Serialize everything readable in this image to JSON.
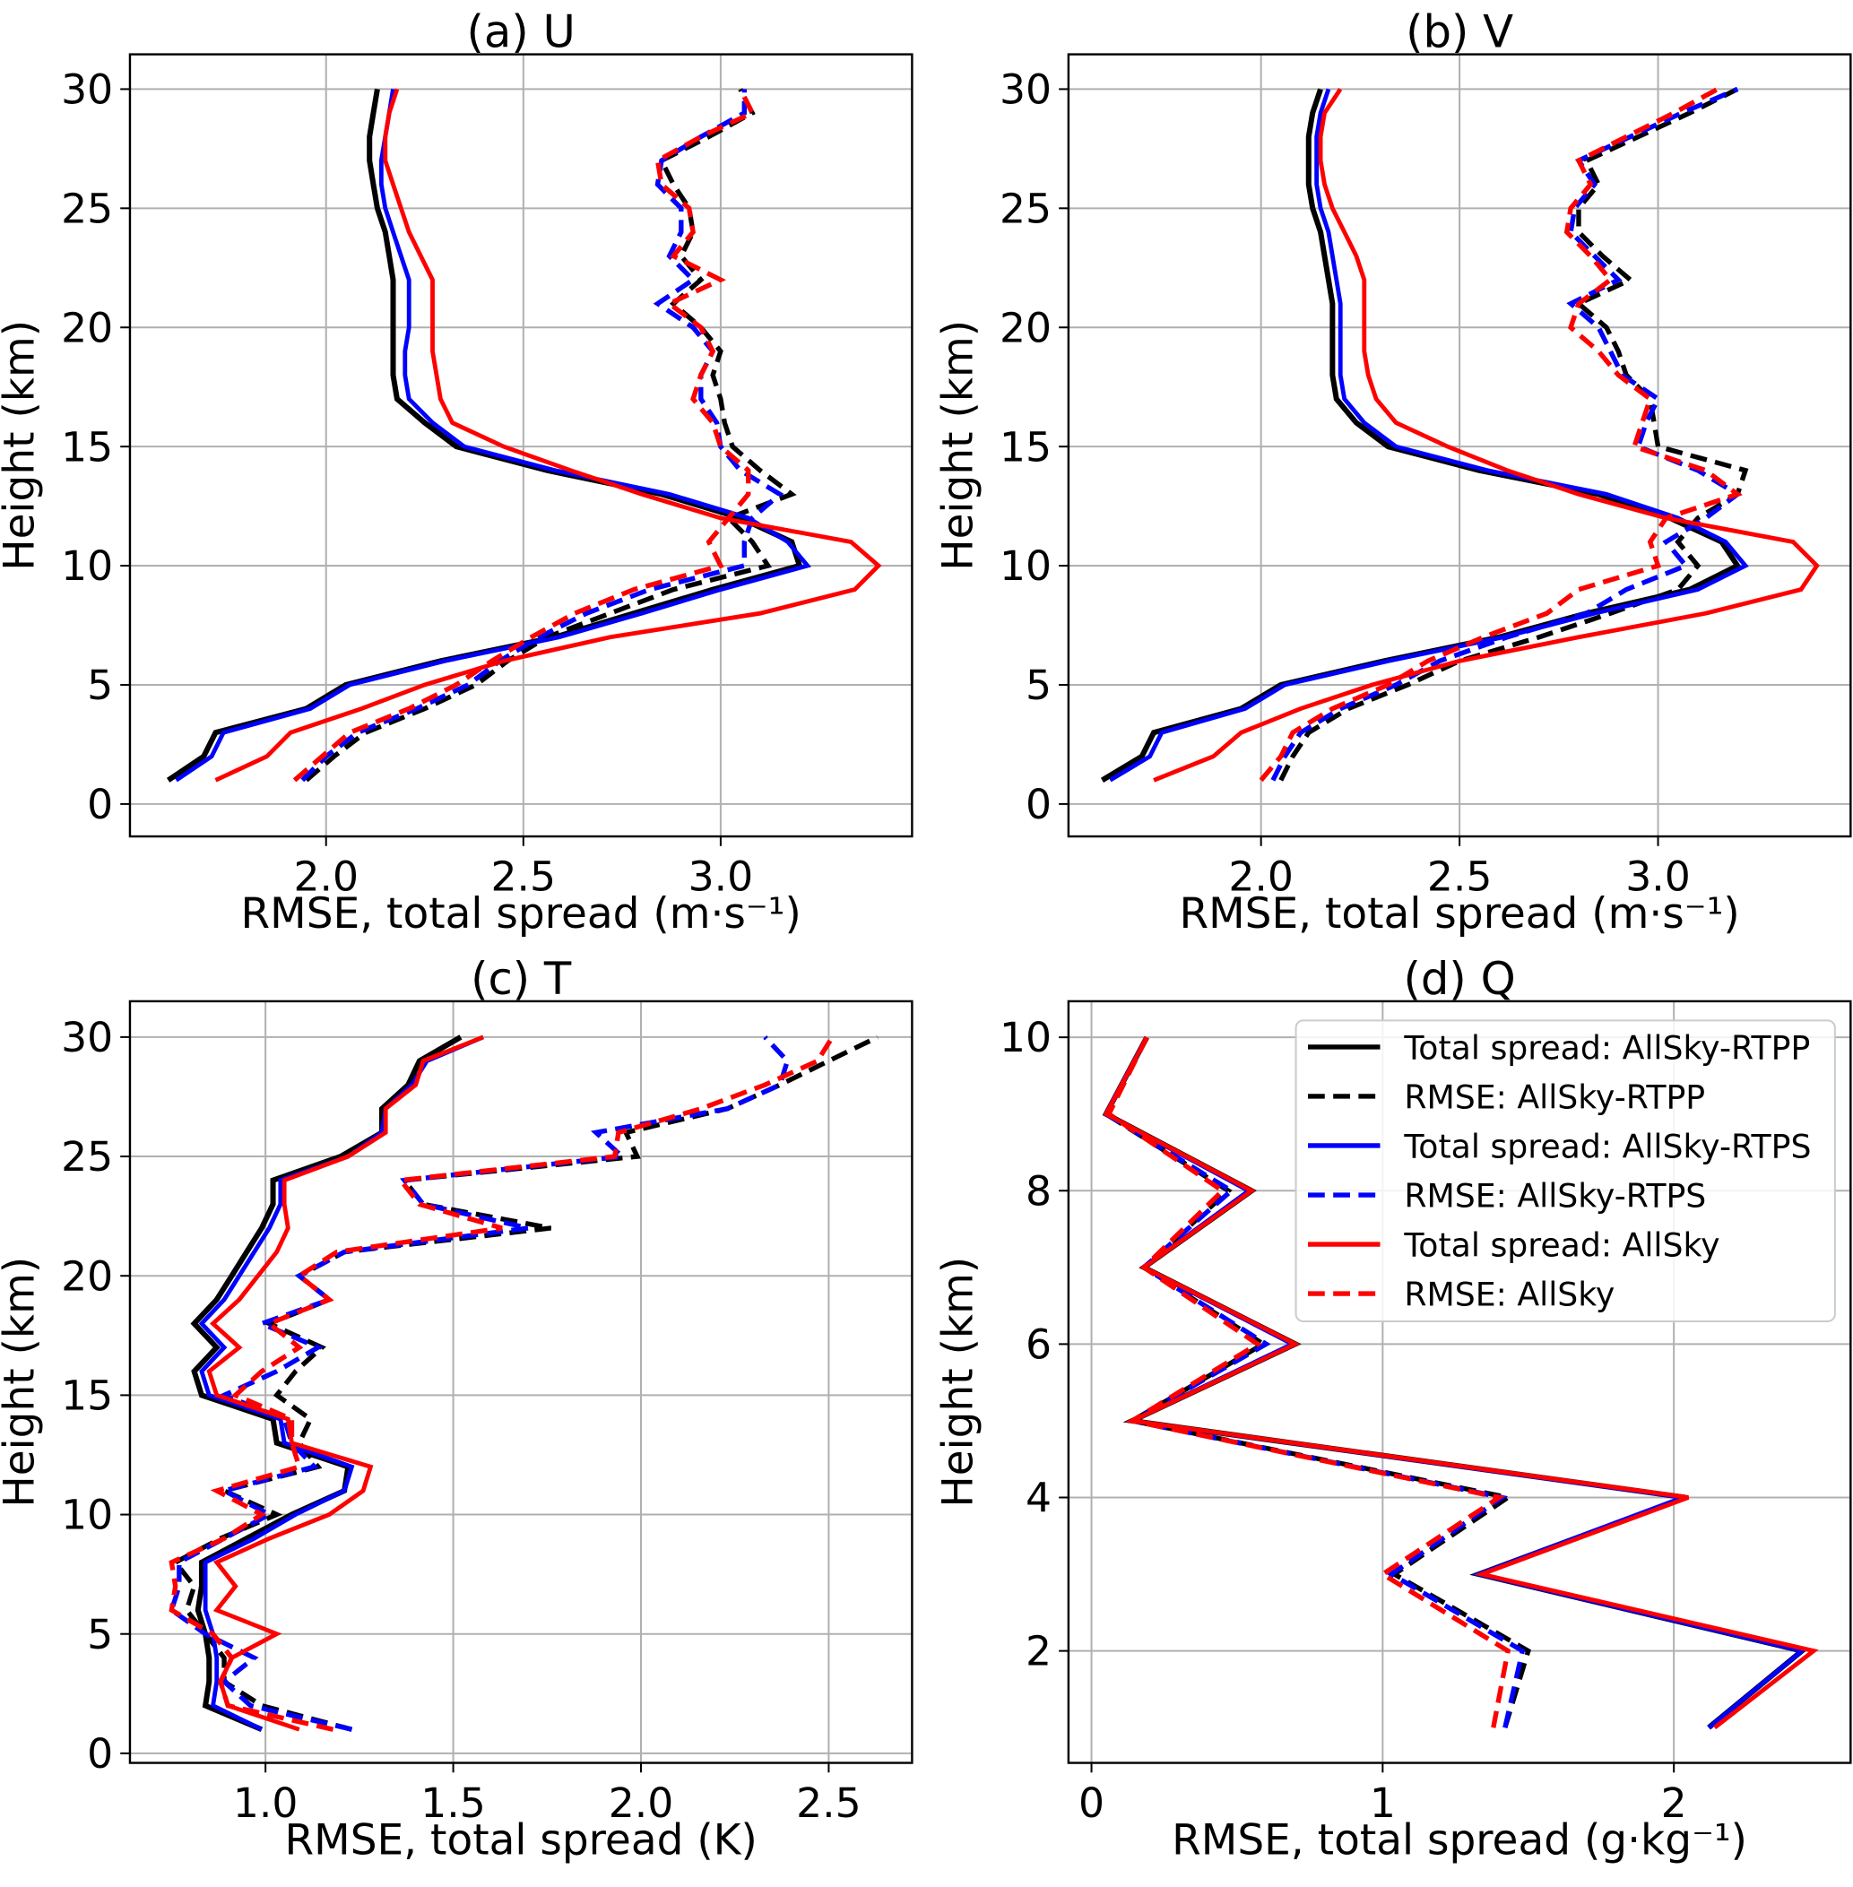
{
  "figure": {
    "legend": [
      {
        "label": "Total spread: AllSky-RTPP",
        "color": "#000000",
        "style": "solid"
      },
      {
        "label": "RMSE: AllSky-RTPP",
        "color": "#000000",
        "style": "dashed"
      },
      {
        "label": "Total spread: AllSky-RTPS",
        "color": "#0000ff",
        "style": "solid"
      },
      {
        "label": "RMSE: AllSky-RTPS",
        "color": "#0000ff",
        "style": "dashed"
      },
      {
        "label": "Total spread: AllSky",
        "color": "#ff0000",
        "style": "solid"
      },
      {
        "label": "RMSE: AllSky",
        "color": "#ff0000",
        "style": "dashed"
      }
    ]
  },
  "chart_data": [
    {
      "type": "line",
      "title": "(a) U",
      "xlabel": "RMSE, total spread (m·s⁻¹)",
      "ylabel": "Height (km)",
      "xlim": [
        1.503,
        3.485
      ],
      "ylim": [
        -1.36,
        31.46
      ],
      "grid": true,
      "xticks": [
        {
          "v": 2.0,
          "t": "2.0"
        },
        {
          "v": 2.5,
          "t": "2.5"
        },
        {
          "v": 3.0,
          "t": "3.0"
        }
      ],
      "yticks": [
        {
          "v": 0,
          "t": "0"
        },
        {
          "v": 5,
          "t": "5"
        },
        {
          "v": 10,
          "t": "10"
        },
        {
          "v": 15,
          "t": "15"
        },
        {
          "v": 20,
          "t": "20"
        },
        {
          "v": 25,
          "t": "25"
        },
        {
          "v": 30,
          "t": "30"
        }
      ],
      "y": [
        1,
        2,
        3,
        4,
        5,
        6,
        7,
        8,
        9,
        10,
        11,
        12,
        13,
        14,
        15,
        16,
        17,
        18,
        19,
        20,
        21,
        22,
        23,
        24,
        25,
        26,
        27,
        28,
        29,
        30
      ],
      "series": [
        {
          "name": "Total spread: AllSky-RTPP",
          "values": [
            1.6,
            1.69,
            1.72,
            1.95,
            2.05,
            2.29,
            2.58,
            2.78,
            2.98,
            3.2,
            3.18,
            3.05,
            2.85,
            2.56,
            2.33,
            2.25,
            2.18,
            2.17,
            2.17,
            2.17,
            2.17,
            2.17,
            2.16,
            2.15,
            2.13,
            2.12,
            2.11,
            2.11,
            2.12,
            2.13
          ]
        },
        {
          "name": "RMSE: AllSky-RTPP",
          "values": [
            1.95,
            2.02,
            2.1,
            2.25,
            2.38,
            2.46,
            2.56,
            2.72,
            2.88,
            3.12,
            3.08,
            3.02,
            3.18,
            3.1,
            3.03,
            3.01,
            3.0,
            2.98,
            3.0,
            2.95,
            2.88,
            2.95,
            2.9,
            2.93,
            2.92,
            2.88,
            2.85,
            2.97,
            3.08,
            3.05
          ]
        },
        {
          "name": "Total spread: AllSky-RTPS",
          "values": [
            1.62,
            1.71,
            1.74,
            1.96,
            2.06,
            2.3,
            2.59,
            2.8,
            3.0,
            3.22,
            3.17,
            3.07,
            2.87,
            2.58,
            2.35,
            2.27,
            2.21,
            2.2,
            2.2,
            2.21,
            2.21,
            2.21,
            2.19,
            2.17,
            2.15,
            2.14,
            2.14,
            2.15,
            2.16,
            2.17
          ]
        },
        {
          "name": "RMSE: AllSky-RTPS",
          "values": [
            1.94,
            2.0,
            2.08,
            2.23,
            2.36,
            2.44,
            2.54,
            2.66,
            2.82,
            3.06,
            3.06,
            3.08,
            3.15,
            3.05,
            3.0,
            2.99,
            2.95,
            2.95,
            2.98,
            2.93,
            2.84,
            2.93,
            2.87,
            2.9,
            2.9,
            2.84,
            2.85,
            2.95,
            3.06,
            3.06
          ]
        },
        {
          "name": "Total spread: AllSky",
          "values": [
            1.72,
            1.85,
            1.91,
            2.09,
            2.25,
            2.45,
            2.72,
            3.1,
            3.34,
            3.4,
            3.33,
            3.0,
            2.8,
            2.62,
            2.45,
            2.32,
            2.29,
            2.28,
            2.27,
            2.27,
            2.27,
            2.27,
            2.24,
            2.21,
            2.19,
            2.17,
            2.15,
            2.15,
            2.16,
            2.18
          ]
        },
        {
          "name": "RMSE: AllSky",
          "values": [
            1.92,
            1.99,
            2.06,
            2.21,
            2.33,
            2.42,
            2.52,
            2.63,
            2.78,
            3.0,
            2.97,
            3.02,
            3.07,
            3.07,
            3.0,
            2.98,
            2.93,
            2.95,
            2.98,
            2.95,
            2.87,
            3.0,
            2.88,
            2.93,
            2.92,
            2.85,
            2.84,
            2.95,
            3.08,
            3.05
          ]
        }
      ]
    },
    {
      "type": "line",
      "title": "(b) V",
      "xlabel": "RMSE, total spread (m·s⁻¹)",
      "ylabel": "Height (km)",
      "xlim": [
        1.515,
        3.485
      ],
      "ylim": [
        -1.36,
        31.46
      ],
      "grid": true,
      "xticks": [
        {
          "v": 2.0,
          "t": "2.0"
        },
        {
          "v": 2.5,
          "t": "2.5"
        },
        {
          "v": 3.0,
          "t": "3.0"
        }
      ],
      "yticks": [
        {
          "v": 0,
          "t": "0"
        },
        {
          "v": 5,
          "t": "5"
        },
        {
          "v": 10,
          "t": "10"
        },
        {
          "v": 15,
          "t": "15"
        },
        {
          "v": 20,
          "t": "20"
        },
        {
          "v": 25,
          "t": "25"
        },
        {
          "v": 30,
          "t": "30"
        }
      ],
      "y": [
        1,
        2,
        3,
        4,
        5,
        6,
        7,
        8,
        9,
        10,
        11,
        12,
        13,
        14,
        15,
        16,
        17,
        18,
        19,
        20,
        21,
        22,
        23,
        24,
        25,
        26,
        27,
        28,
        29,
        30
      ],
      "series": [
        {
          "name": "Total spread: AllSky-RTPP",
          "values": [
            1.6,
            1.7,
            1.73,
            1.95,
            2.05,
            2.31,
            2.6,
            2.82,
            3.08,
            3.2,
            3.16,
            3.03,
            2.85,
            2.55,
            2.32,
            2.24,
            2.19,
            2.18,
            2.18,
            2.18,
            2.18,
            2.17,
            2.16,
            2.15,
            2.13,
            2.12,
            2.12,
            2.12,
            2.13,
            2.15
          ]
        },
        {
          "name": "RMSE: AllSky-RTPP",
          "values": [
            2.05,
            2.08,
            2.12,
            2.22,
            2.37,
            2.5,
            2.7,
            2.88,
            3.05,
            3.1,
            3.05,
            3.1,
            3.2,
            3.22,
            3.0,
            2.99,
            2.98,
            2.92,
            2.9,
            2.87,
            2.8,
            2.93,
            2.86,
            2.8,
            2.8,
            2.85,
            2.82,
            2.95,
            3.08,
            3.2
          ]
        },
        {
          "name": "Total spread: AllSky-RTPS",
          "values": [
            1.62,
            1.72,
            1.75,
            1.96,
            2.06,
            2.32,
            2.61,
            2.84,
            3.1,
            3.22,
            3.17,
            3.05,
            2.87,
            2.57,
            2.34,
            2.26,
            2.21,
            2.2,
            2.2,
            2.2,
            2.2,
            2.19,
            2.18,
            2.17,
            2.15,
            2.14,
            2.14,
            2.14,
            2.15,
            2.17
          ]
        },
        {
          "name": "RMSE: AllSky-RTPS",
          "values": [
            2.03,
            2.06,
            2.1,
            2.2,
            2.34,
            2.45,
            2.62,
            2.82,
            2.92,
            3.07,
            3.02,
            3.12,
            3.2,
            3.1,
            2.95,
            2.97,
            3.0,
            2.91,
            2.88,
            2.85,
            2.78,
            2.9,
            2.84,
            2.78,
            2.79,
            2.84,
            2.8,
            2.93,
            3.06,
            3.2
          ]
        },
        {
          "name": "Total spread: AllSky",
          "values": [
            1.73,
            1.88,
            1.95,
            2.1,
            2.28,
            2.5,
            2.8,
            3.12,
            3.36,
            3.4,
            3.34,
            3.02,
            2.8,
            2.62,
            2.47,
            2.34,
            2.29,
            2.27,
            2.26,
            2.26,
            2.26,
            2.26,
            2.24,
            2.21,
            2.18,
            2.16,
            2.15,
            2.15,
            2.16,
            2.2
          ]
        },
        {
          "name": "RMSE: AllSky",
          "values": [
            2.0,
            2.05,
            2.08,
            2.18,
            2.32,
            2.42,
            2.56,
            2.72,
            2.8,
            3.0,
            2.98,
            3.02,
            3.2,
            3.12,
            2.94,
            2.96,
            2.98,
            2.9,
            2.85,
            2.78,
            2.8,
            2.88,
            2.83,
            2.77,
            2.78,
            2.83,
            2.8,
            2.92,
            3.04,
            3.15
          ]
        }
      ]
    },
    {
      "type": "line",
      "title": "(c) T",
      "xlabel": "RMSE, total spread (K)",
      "ylabel": "Height (km)",
      "xlim": [
        0.639,
        2.722
      ],
      "ylim": [
        -0.4,
        31.5
      ],
      "grid": true,
      "xticks": [
        {
          "v": 1.0,
          "t": "1.0"
        },
        {
          "v": 1.5,
          "t": "1.5"
        },
        {
          "v": 2.0,
          "t": "2.0"
        },
        {
          "v": 2.5,
          "t": "2.5"
        }
      ],
      "yticks": [
        {
          "v": 0,
          "t": "0"
        },
        {
          "v": 5,
          "t": "5"
        },
        {
          "v": 10,
          "t": "10"
        },
        {
          "v": 15,
          "t": "15"
        },
        {
          "v": 20,
          "t": "20"
        },
        {
          "v": 25,
          "t": "25"
        },
        {
          "v": 30,
          "t": "30"
        }
      ],
      "y": [
        1,
        2,
        3,
        4,
        5,
        6,
        7,
        8,
        9,
        10,
        11,
        12,
        13,
        14,
        15,
        16,
        17,
        18,
        19,
        20,
        21,
        22,
        23,
        24,
        25,
        26,
        27,
        28,
        29,
        30
      ],
      "series": [
        {
          "name": "Total spread: AllSky-RTPP",
          "values": [
            0.99,
            0.84,
            0.85,
            0.85,
            0.84,
            0.82,
            0.83,
            0.83,
            0.95,
            1.07,
            1.21,
            1.22,
            1.03,
            1.02,
            0.83,
            0.81,
            0.87,
            0.81,
            0.87,
            0.91,
            0.95,
            0.99,
            1.02,
            1.02,
            1.2,
            1.31,
            1.31,
            1.38,
            1.41,
            1.52
          ]
        },
        {
          "name": "RMSE: AllSky-RTPP",
          "values": [
            1.23,
            0.99,
            0.89,
            0.89,
            0.84,
            0.79,
            0.81,
            0.76,
            0.88,
            1.03,
            0.89,
            1.14,
            1.09,
            1.12,
            1.03,
            1.08,
            1.15,
            1.01,
            1.17,
            1.09,
            1.21,
            1.76,
            1.42,
            1.37,
            1.99,
            1.96,
            2.23,
            2.37,
            2.5,
            2.63
          ]
        },
        {
          "name": "Total spread: AllSky-RTPS",
          "values": [
            0.99,
            0.86,
            0.87,
            0.87,
            0.86,
            0.84,
            0.84,
            0.84,
            0.97,
            1.08,
            1.21,
            1.23,
            1.05,
            1.04,
            0.85,
            0.83,
            0.89,
            0.83,
            0.89,
            0.93,
            0.97,
            1.01,
            1.04,
            1.04,
            1.22,
            1.31,
            1.32,
            1.39,
            1.43,
            1.58
          ]
        },
        {
          "name": "RMSE: AllSky-RTPS",
          "values": [
            1.23,
            0.96,
            0.89,
            0.97,
            0.84,
            0.75,
            0.77,
            0.77,
            0.89,
            1.01,
            0.89,
            1.13,
            1.07,
            1.05,
            0.89,
            1.03,
            1.14,
            0.99,
            1.17,
            1.09,
            1.21,
            1.7,
            1.42,
            1.37,
            1.95,
            1.88,
            2.23,
            2.37,
            2.39,
            2.33
          ]
        },
        {
          "name": "Total spread: AllSky",
          "values": [
            1.09,
            0.9,
            0.88,
            0.91,
            1.03,
            0.87,
            0.92,
            0.87,
            1.01,
            1.17,
            1.26,
            1.28,
            1.07,
            1.06,
            0.87,
            0.85,
            0.93,
            0.86,
            0.93,
            0.98,
            1.03,
            1.06,
            1.05,
            1.05,
            1.22,
            1.32,
            1.32,
            1.4,
            1.42,
            1.58
          ]
        },
        {
          "name": "RMSE: AllSky",
          "values": [
            1.18,
            0.9,
            0.88,
            0.91,
            0.86,
            0.75,
            0.76,
            0.75,
            0.89,
            0.99,
            0.87,
            1.09,
            1.07,
            1.07,
            0.92,
            0.99,
            1.09,
            1.01,
            1.17,
            1.09,
            1.19,
            1.63,
            1.41,
            1.36,
            1.93,
            1.94,
            2.16,
            2.33,
            2.47,
            2.51
          ]
        }
      ]
    },
    {
      "type": "line",
      "title": "(d) Q",
      "xlabel": "RMSE, total spread (g·kg⁻¹)",
      "ylabel": "Height (km)",
      "xlim": [
        -0.079,
        2.607
      ],
      "ylim": [
        0.54,
        10.47
      ],
      "grid": true,
      "legend_position": "top-right",
      "xticks": [
        {
          "v": 0,
          "t": "0"
        },
        {
          "v": 1,
          "t": "1"
        },
        {
          "v": 2,
          "t": "2"
        }
      ],
      "yticks": [
        {
          "v": 2,
          "t": "2"
        },
        {
          "v": 4,
          "t": "4"
        },
        {
          "v": 6,
          "t": "6"
        },
        {
          "v": 8,
          "t": "8"
        },
        {
          "v": 10,
          "t": "10"
        }
      ],
      "y": [
        1,
        2,
        3,
        4,
        5,
        6,
        7,
        8,
        9,
        10
      ],
      "series": [
        {
          "name": "Total spread: AllSky-RTPP",
          "values": [
            2.12,
            2.44,
            1.33,
            2.04,
            0.14,
            0.7,
            0.18,
            0.55,
            0.05,
            0.19
          ]
        },
        {
          "name": "RMSE: AllSky-RTPP",
          "values": [
            1.42,
            1.5,
            1.04,
            1.43,
            0.14,
            0.59,
            0.18,
            0.47,
            0.05,
            0.19
          ]
        },
        {
          "name": "Total spread: AllSky-RTPS",
          "values": [
            2.12,
            2.44,
            1.33,
            2.03,
            0.14,
            0.69,
            0.18,
            0.54,
            0.05,
            0.19
          ]
        },
        {
          "name": "RMSE: AllSky-RTPS",
          "values": [
            1.42,
            1.48,
            1.03,
            1.41,
            0.14,
            0.6,
            0.18,
            0.48,
            0.05,
            0.19
          ]
        },
        {
          "name": "Total spread: AllSky",
          "values": [
            2.14,
            2.48,
            1.34,
            2.05,
            0.14,
            0.7,
            0.18,
            0.55,
            0.05,
            0.19
          ]
        },
        {
          "name": "RMSE: AllSky",
          "values": [
            1.38,
            1.43,
            1.0,
            1.4,
            0.14,
            0.57,
            0.18,
            0.45,
            0.06,
            0.19
          ]
        }
      ]
    }
  ]
}
